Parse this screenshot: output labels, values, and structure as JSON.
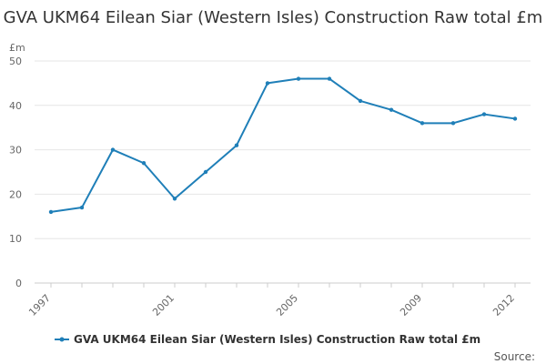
{
  "chart_data": {
    "type": "line",
    "title": "GVA UKM64 Eilean Siar (Western Isles) Construction Raw total £m",
    "ylabel": "£m",
    "xlabel": "",
    "ylim": [
      0,
      50
    ],
    "yticks": [
      0,
      10,
      20,
      30,
      40,
      50
    ],
    "xlim": [
      1997,
      2012
    ],
    "xticks": [
      1997,
      2001,
      2005,
      2009,
      2012
    ],
    "grid": true,
    "legend_position": "bottom",
    "series": [
      {
        "name": "GVA UKM64 Eilean Siar (Western Isles) Construction Raw total £m",
        "color": "#1f7fb8",
        "x": [
          1997,
          1998,
          1999,
          2000,
          2001,
          2002,
          2003,
          2004,
          2005,
          2006,
          2007,
          2008,
          2009,
          2010,
          2011,
          2012
        ],
        "values": [
          16,
          17,
          30,
          27,
          19,
          25,
          31,
          45,
          46,
          46,
          41,
          39,
          36,
          36,
          38,
          37
        ]
      }
    ],
    "source_label": "Source:"
  }
}
